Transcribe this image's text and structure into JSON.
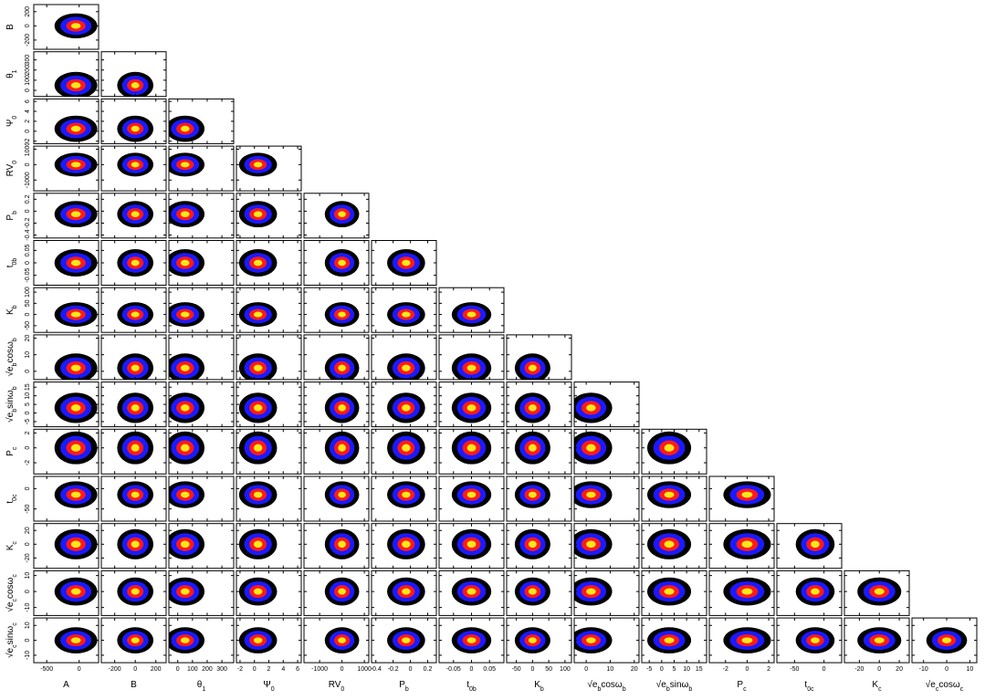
{
  "chart_data": {
    "type": "corner",
    "colors": [
      "#000000",
      "#1a1aff",
      "#ff1a1a",
      "#ffe81a"
    ],
    "levels": [
      2.2,
      1.6,
      1.0,
      0.5
    ],
    "params": [
      {
        "label": [
          "A"
        ],
        "lim": [
          -700,
          300
        ],
        "ticks": [
          -500,
          0
        ],
        "median": -50,
        "spread": 150
      },
      {
        "label": [
          "B"
        ],
        "lim": [
          -330,
          300
        ],
        "ticks": [
          -200,
          0,
          200
        ],
        "median": 0,
        "spread": 80
      },
      {
        "label": [
          "θ",
          "1"
        ],
        "lim": [
          -60,
          380
        ],
        "ticks": [
          0,
          100,
          200,
          300
        ],
        "median": 50,
        "spread": 60
      },
      {
        "label": [
          "Ψ",
          "0"
        ],
        "lim": [
          -2.5,
          6.5
        ],
        "ticks": [
          -2,
          0,
          2,
          4,
          6
        ],
        "median": 0.5,
        "spread": 1.2
      },
      {
        "label": [
          "RV",
          "0"
        ],
        "lim": [
          -1700,
          1200
        ],
        "ticks": [
          -1000,
          0,
          1000
        ],
        "median": 0,
        "spread": 350
      },
      {
        "label": [
          "P",
          "b"
        ],
        "lim": [
          -0.45,
          0.3
        ],
        "ticks": [
          -0.4,
          -0.2,
          0,
          0.2
        ],
        "median": -0.05,
        "spread": 0.1
      },
      {
        "label": [
          "t",
          "0b"
        ],
        "lim": [
          -0.09,
          0.09
        ],
        "ticks": [
          -0.05,
          0,
          0.05
        ],
        "median": 0,
        "spread": 0.025
      },
      {
        "label": [
          "K",
          "b"
        ],
        "lim": [
          -80,
          120
        ],
        "ticks": [
          -50,
          0,
          50,
          100
        ],
        "median": 0,
        "spread": 25
      },
      {
        "label": [
          "√e",
          "b",
          "cosω",
          "b"
        ],
        "lim": [
          -5,
          22
        ],
        "ticks": [
          0,
          10,
          20
        ],
        "median": 2,
        "spread": 4
      },
      {
        "label": [
          "√e",
          "b",
          "sinω",
          "b"
        ],
        "lim": [
          -8,
          18
        ],
        "ticks": [
          -5,
          0,
          5,
          10,
          15
        ],
        "median": 3,
        "spread": 4
      },
      {
        "label": [
          "P",
          "c"
        ],
        "lim": [
          -3.5,
          2.5
        ],
        "ticks": [
          -2,
          0,
          2
        ],
        "median": 0,
        "spread": 1
      },
      {
        "label": [
          "t",
          "0c"
        ],
        "lim": [
          -80,
          30
        ],
        "ticks": [
          -50,
          0
        ],
        "median": -15,
        "spread": 15
      },
      {
        "label": [
          "K",
          "c"
        ],
        "lim": [
          -35,
          30
        ],
        "ticks": [
          -20,
          0,
          20
        ],
        "median": 0,
        "spread": 10
      },
      {
        "label": [
          "√e",
          "c",
          "cosω",
          "c"
        ],
        "lim": [
          -15,
          13
        ],
        "ticks": [
          -10,
          0,
          10
        ],
        "median": 0,
        "spread": 4
      },
      {
        "label": [
          "√e",
          "c",
          "sinω",
          "c"
        ],
        "lim": [
          -15,
          15
        ],
        "ticks": [
          -10,
          0,
          10
        ],
        "median": 0,
        "spread": 4
      }
    ]
  }
}
